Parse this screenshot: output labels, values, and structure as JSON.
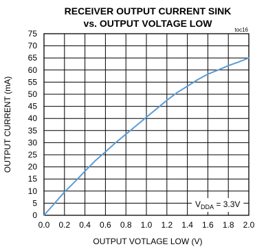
{
  "chart_data": {
    "type": "line",
    "title_line1": "RECEIVER OUTPUT CURRENT SINK",
    "title_line2": "vs. OUTPUT VOLTAGE LOW",
    "figure_id": "toc16",
    "xlabel": "OUTPUT VOTLAGE LOW (V)",
    "ylabel": "OUTPUT CURRENT (mA)",
    "xlim": [
      0,
      2.0
    ],
    "ylim": [
      0,
      75
    ],
    "x_ticks": [
      "0.0",
      "0.2",
      "0.4",
      "0.6",
      "0.8",
      "1.0",
      "1.2",
      "1.4",
      "1.6",
      "1.8",
      "2.0"
    ],
    "y_ticks": [
      "0",
      "5",
      "10",
      "15",
      "20",
      "25",
      "30",
      "35",
      "40",
      "45",
      "50",
      "55",
      "60",
      "65",
      "70",
      "75"
    ],
    "grid": true,
    "annotation": {
      "main": "V",
      "subscript": "DDA",
      "suffix": " = 3.3V"
    },
    "line_color": "#5b9bd5",
    "series": [
      {
        "x": [
          0.0,
          0.1,
          0.2,
          0.3,
          0.4,
          0.5,
          0.6,
          0.7,
          0.8,
          0.9,
          1.0,
          1.1,
          1.2,
          1.3,
          1.4,
          1.5,
          1.6,
          1.7,
          1.8,
          1.9,
          2.0
        ],
        "y": [
          0,
          4.8,
          9.6,
          13.8,
          18.2,
          22.5,
          26.2,
          30.0,
          33.5,
          37.0,
          40.5,
          44.0,
          47.5,
          50.7,
          53.3,
          56.0,
          58.3,
          60.0,
          61.8,
          63.3,
          65.0
        ]
      }
    ]
  }
}
